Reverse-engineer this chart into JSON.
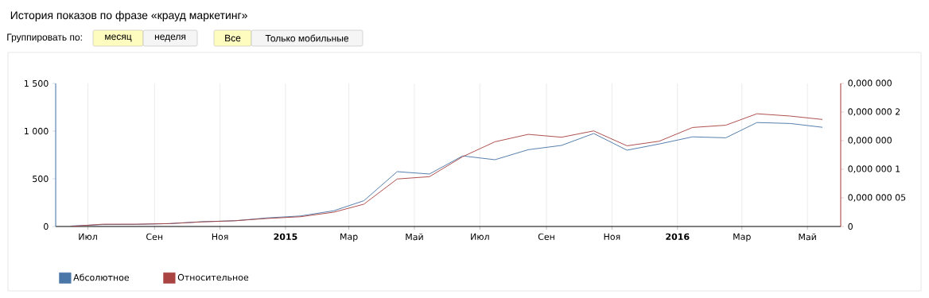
{
  "chart_data": {
    "type": "line",
    "title": "История показов по фразе «крауд маркетинг»",
    "annotations": [
      "Группировать по:",
      "месяц",
      "неделя",
      "Все",
      "Только мобильные"
    ],
    "x": [
      "2014-06-15",
      "2014-07-15",
      "2014-08-15",
      "2014-09-15",
      "2014-10-15",
      "2014-11-15",
      "2014-12-15",
      "2015-01-15",
      "2015-02-15",
      "2015-03-15",
      "2015-04-15",
      "2015-05-15",
      "2015-06-15",
      "2015-07-15",
      "2015-08-15",
      "2015-09-15",
      "2015-10-15",
      "2015-11-15",
      "2015-12-15",
      "2016-01-15",
      "2016-02-15",
      "2016-03-15",
      "2016-04-15",
      "2016-05-15"
    ],
    "series": [
      {
        "name": "Абсолютное",
        "color": "#4a76a8",
        "values": [
          5,
          20,
          22,
          30,
          50,
          60,
          90,
          110,
          165,
          270,
          575,
          550,
          740,
          700,
          805,
          850,
          975,
          800,
          865,
          940,
          930,
          1090,
          1080,
          1040
        ]
      },
      {
        "name": "Относительное",
        "color": "#a94442",
        "axis": "y2",
        "values": [
          0,
          4e-09,
          4e-09,
          5e-09,
          8e-09,
          1e-08,
          1.4e-08,
          1.7e-08,
          2.5e-08,
          3.9e-08,
          8.3e-08,
          8.7e-08,
          1.22e-07,
          1.48e-07,
          1.61e-07,
          1.56e-07,
          1.67e-07,
          1.41e-07,
          1.49e-07,
          1.73e-07,
          1.77e-07,
          1.97e-07,
          1.93e-07,
          1.87e-07
        ]
      }
    ],
    "xlim": [
      "2014-06-01",
      "2016-06-01"
    ],
    "xticks": [
      {
        "value": "2014-07-01",
        "label": "Июл"
      },
      {
        "value": "2014-09-01",
        "label": "Сен"
      },
      {
        "value": "2014-11-01",
        "label": "Ноя"
      },
      {
        "value": "2015-01-01",
        "label": "2015"
      },
      {
        "value": "2015-03-01",
        "label": "Мар"
      },
      {
        "value": "2015-05-01",
        "label": "Май"
      },
      {
        "value": "2015-07-01",
        "label": "Июл"
      },
      {
        "value": "2015-09-01",
        "label": "Сен"
      },
      {
        "value": "2015-11-01",
        "label": "Ноя"
      },
      {
        "value": "2016-01-01",
        "label": "2016"
      },
      {
        "value": "2016-03-01",
        "label": "Мар"
      },
      {
        "value": "2016-05-01",
        "label": "Май"
      }
    ],
    "ylim": [
      0,
      1500
    ],
    "yticks": [
      0,
      500,
      {
        "value": 1000,
        "label": "1 000"
      },
      {
        "value": 1500,
        "label": "1 500"
      }
    ],
    "y2lim": [
      0,
      2.5e-07
    ],
    "y2ticks": [
      0,
      {
        "value": 5e-08,
        "label": "0,000 000 05"
      },
      {
        "value": 1e-07,
        "label": "0,000 000 1"
      },
      {
        "value": 1.5e-07,
        "label": "0,000 000"
      },
      {
        "value": 2e-07,
        "label": "0,000 000 2"
      },
      {
        "value": 2.5e-07,
        "label": "0,000 000"
      }
    ],
    "grid": "x",
    "legend": "bottom left",
    "line_style": "solid",
    "marker": "none"
  }
}
